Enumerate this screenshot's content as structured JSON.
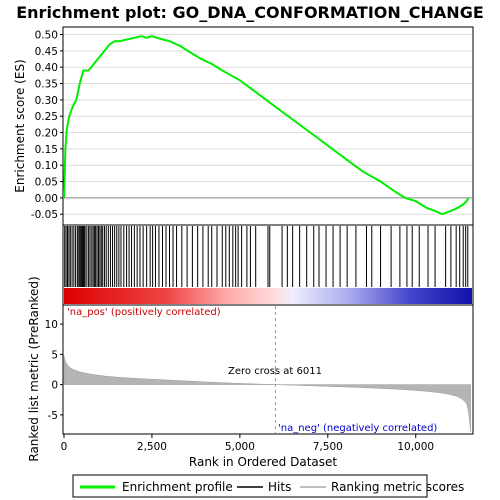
{
  "chart_data": [
    {
      "type": "line",
      "panel": "enrichment-score",
      "title": "Enrichment plot: GO_DNA_CONFORMATION_CHANGE",
      "ylabel": "Enrichment score (ES)",
      "xlim": [
        0,
        11600
      ],
      "ylim": [
        -0.08,
        0.52
      ],
      "yticks": [
        -0.05,
        0.0,
        0.05,
        0.1,
        0.15,
        0.2,
        0.25,
        0.3,
        0.35,
        0.4,
        0.45,
        0.5
      ],
      "ytick_labels": [
        "-0.05",
        "0.00",
        "0.05",
        "0.10",
        "0.15",
        "0.20",
        "0.25",
        "0.30",
        "0.35",
        "0.40",
        "0.45",
        "0.50"
      ],
      "grid": true,
      "series": [
        {
          "name": "Enrichment profile",
          "color": "#00ee00",
          "x": [
            0,
            40,
            80,
            150,
            250,
            350,
            450,
            550,
            700,
            850,
            1000,
            1150,
            1300,
            1450,
            1600,
            1800,
            2000,
            2200,
            2350,
            2500,
            2650,
            2800,
            3000,
            3300,
            3600,
            3900,
            4200,
            4500,
            5000,
            5500,
            6000,
            6500,
            7000,
            7500,
            8000,
            8500,
            9000,
            9400,
            9700,
            10000,
            10300,
            10550,
            10750,
            11000,
            11200,
            11350,
            11450,
            11500
          ],
          "y": [
            0.0,
            0.15,
            0.21,
            0.25,
            0.28,
            0.3,
            0.35,
            0.39,
            0.39,
            0.41,
            0.43,
            0.45,
            0.47,
            0.48,
            0.48,
            0.485,
            0.49,
            0.495,
            0.49,
            0.495,
            0.49,
            0.485,
            0.48,
            0.465,
            0.445,
            0.425,
            0.41,
            0.39,
            0.36,
            0.32,
            0.28,
            0.24,
            0.2,
            0.16,
            0.12,
            0.08,
            0.05,
            0.02,
            0.0,
            -0.01,
            -0.03,
            -0.04,
            -0.05,
            -0.04,
            -0.03,
            -0.02,
            -0.01,
            0.0
          ]
        }
      ]
    },
    {
      "type": "barcode",
      "panel": "hits",
      "series": [
        {
          "name": "Hits",
          "color": "#000000",
          "x": [
            20,
            60,
            100,
            140,
            180,
            230,
            280,
            330,
            380,
            420,
            450,
            480,
            510,
            540,
            570,
            600,
            650,
            700,
            740,
            790,
            830,
            870,
            900,
            940,
            980,
            1020,
            1060,
            1100,
            1150,
            1200,
            1260,
            1320,
            1380,
            1440,
            1500,
            1560,
            1620,
            1700,
            1780,
            1850,
            1920,
            2000,
            2080,
            2160,
            2250,
            2350,
            2450,
            2520,
            2600,
            2700,
            2800,
            2900,
            3000,
            3100,
            3200,
            3350,
            3500,
            3650,
            3800,
            3950,
            4100,
            4200,
            4350,
            4500,
            4600,
            4700,
            4800,
            4880,
            4950,
            5050,
            5200,
            5300,
            5450,
            5800,
            5850,
            6200,
            6350,
            6500,
            6700,
            6900,
            7100,
            7250,
            7450,
            7650,
            7850,
            8050,
            8300,
            8600,
            8750,
            9000,
            9300,
            9550,
            9750,
            9900,
            10100,
            10350,
            10550,
            10850,
            11000,
            11150,
            11250,
            11350,
            11420,
            11480
          ]
        }
      ]
    },
    {
      "type": "area",
      "panel": "ranked-metric",
      "ylabel": "Ranked list metric (PreRanked)",
      "xlabel": "Rank in Ordered Dataset",
      "xlim": [
        0,
        11600
      ],
      "ylim": [
        -8,
        13
      ],
      "xticks": [
        0,
        2500,
        5000,
        7500,
        10000
      ],
      "xtick_labels": [
        "0",
        "2,500",
        "5,000",
        "7,500",
        "10,000"
      ],
      "yticks": [
        -5,
        0,
        5,
        10
      ],
      "ytick_labels": [
        "-5",
        "0",
        "5",
        "10"
      ],
      "zero_cross": 6011,
      "series": [
        {
          "name": "Ranking metric scores",
          "color": "#aaaaaa",
          "x": [
            0,
            20,
            60,
            120,
            200,
            300,
            450,
            650,
            900,
            1200,
            1600,
            2000,
            2500,
            3000,
            3500,
            4000,
            4500,
            5000,
            5500,
            6011,
            6500,
            7000,
            7500,
            8000,
            8500,
            9000,
            9500,
            10000,
            10400,
            10700,
            10950,
            11150,
            11300,
            11400,
            11460,
            11500,
            11530,
            11560
          ],
          "y": [
            4.8,
            4.2,
            3.6,
            3.1,
            2.7,
            2.4,
            2.1,
            1.85,
            1.6,
            1.4,
            1.2,
            1.05,
            0.9,
            0.75,
            0.6,
            0.45,
            0.32,
            0.2,
            0.1,
            0.0,
            -0.1,
            -0.2,
            -0.3,
            -0.4,
            -0.5,
            -0.62,
            -0.78,
            -0.95,
            -1.15,
            -1.35,
            -1.6,
            -1.9,
            -2.3,
            -2.8,
            -3.4,
            -4.5,
            -6.0,
            -7.8
          ]
        }
      ]
    }
  ],
  "annotations": {
    "pos_label": "'na_pos' (positively correlated)",
    "neg_label": "'na_neg' (negatively correlated)",
    "zero_cross_label": "Zero cross at 6011",
    "pos_color": "#cc0000",
    "neg_color": "#0000cc"
  },
  "legend": {
    "placement": "bottom",
    "items": [
      {
        "label": "Enrichment profile",
        "color": "#00ee00"
      },
      {
        "label": "Hits",
        "color": "#000000"
      },
      {
        "label": "Ranking metric scores",
        "color": "#aaaaaa"
      }
    ]
  }
}
